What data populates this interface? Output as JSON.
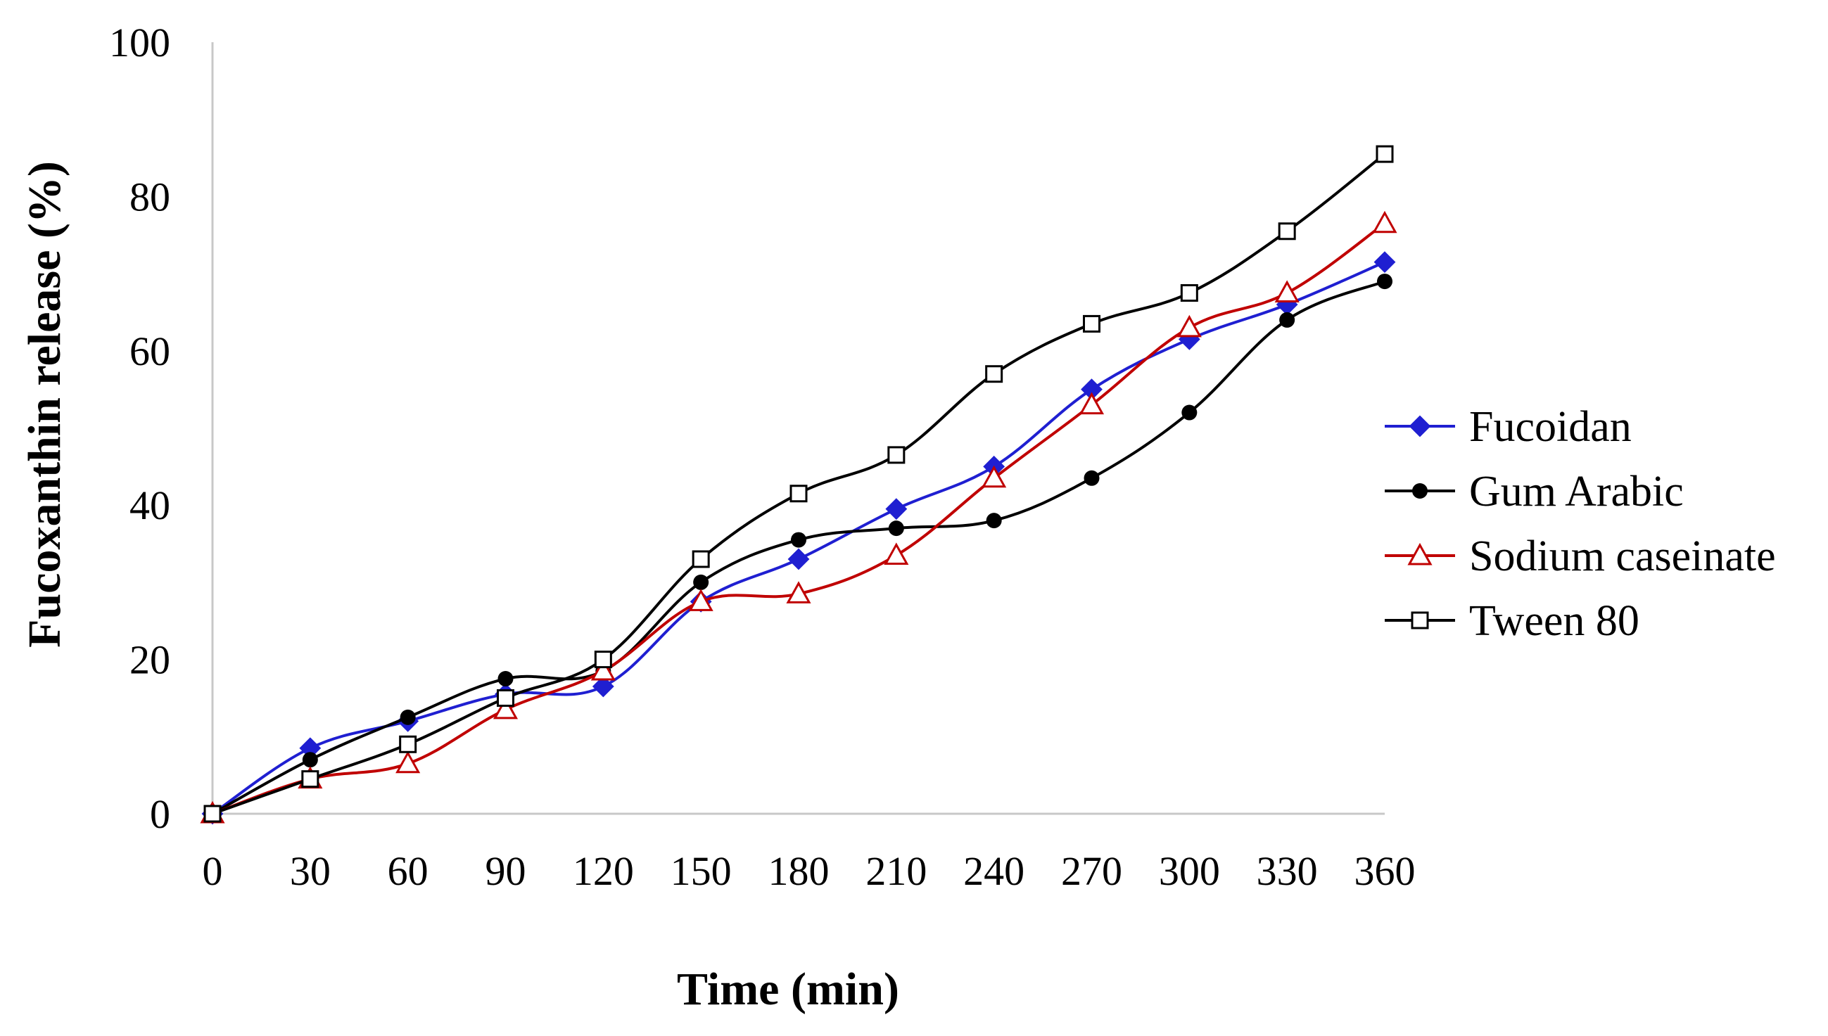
{
  "chart_data": {
    "type": "line",
    "title": "",
    "xlabel": "Time (min)",
    "ylabel": "Fucoxanthin release (%)",
    "x": [
      0,
      30,
      60,
      90,
      120,
      150,
      180,
      210,
      240,
      270,
      300,
      330,
      360
    ],
    "x_tick_labels": [
      "0",
      "30",
      "60",
      "90",
      "120",
      "150",
      "180",
      "210",
      "240",
      "270",
      "300",
      "330",
      "360"
    ],
    "y_tick_labels": [
      "0",
      "20",
      "40",
      "60",
      "80",
      "100"
    ],
    "xlim": [
      0,
      360
    ],
    "ylim": [
      0,
      100
    ],
    "grid": false,
    "legend_position": "right",
    "series": [
      {
        "name": "Fucoidan",
        "marker": "diamond",
        "color": "#1f1fd1",
        "values": [
          0,
          8.5,
          12,
          15.5,
          16.5,
          27.5,
          33,
          39.5,
          45,
          55,
          61.5,
          66,
          71.5
        ]
      },
      {
        "name": "Gum Arabic",
        "marker": "circle",
        "color": "#000000",
        "values": [
          0,
          7,
          12.5,
          17.5,
          18.5,
          30,
          35.5,
          37,
          38,
          43.5,
          52,
          64,
          69
        ]
      },
      {
        "name": "Sodium caseinate",
        "marker": "triangle",
        "color": "#c00000",
        "values": [
          0,
          4.5,
          6.5,
          13.5,
          18.5,
          27.5,
          28.5,
          33.5,
          43.5,
          53,
          63,
          67.5,
          76.5
        ]
      },
      {
        "name": "Tween 80",
        "marker": "square",
        "color": "#000000",
        "values": [
          0,
          4.5,
          9,
          15,
          20,
          33,
          41.5,
          46.5,
          57,
          63.5,
          67.5,
          75.5,
          85.5
        ]
      }
    ]
  }
}
